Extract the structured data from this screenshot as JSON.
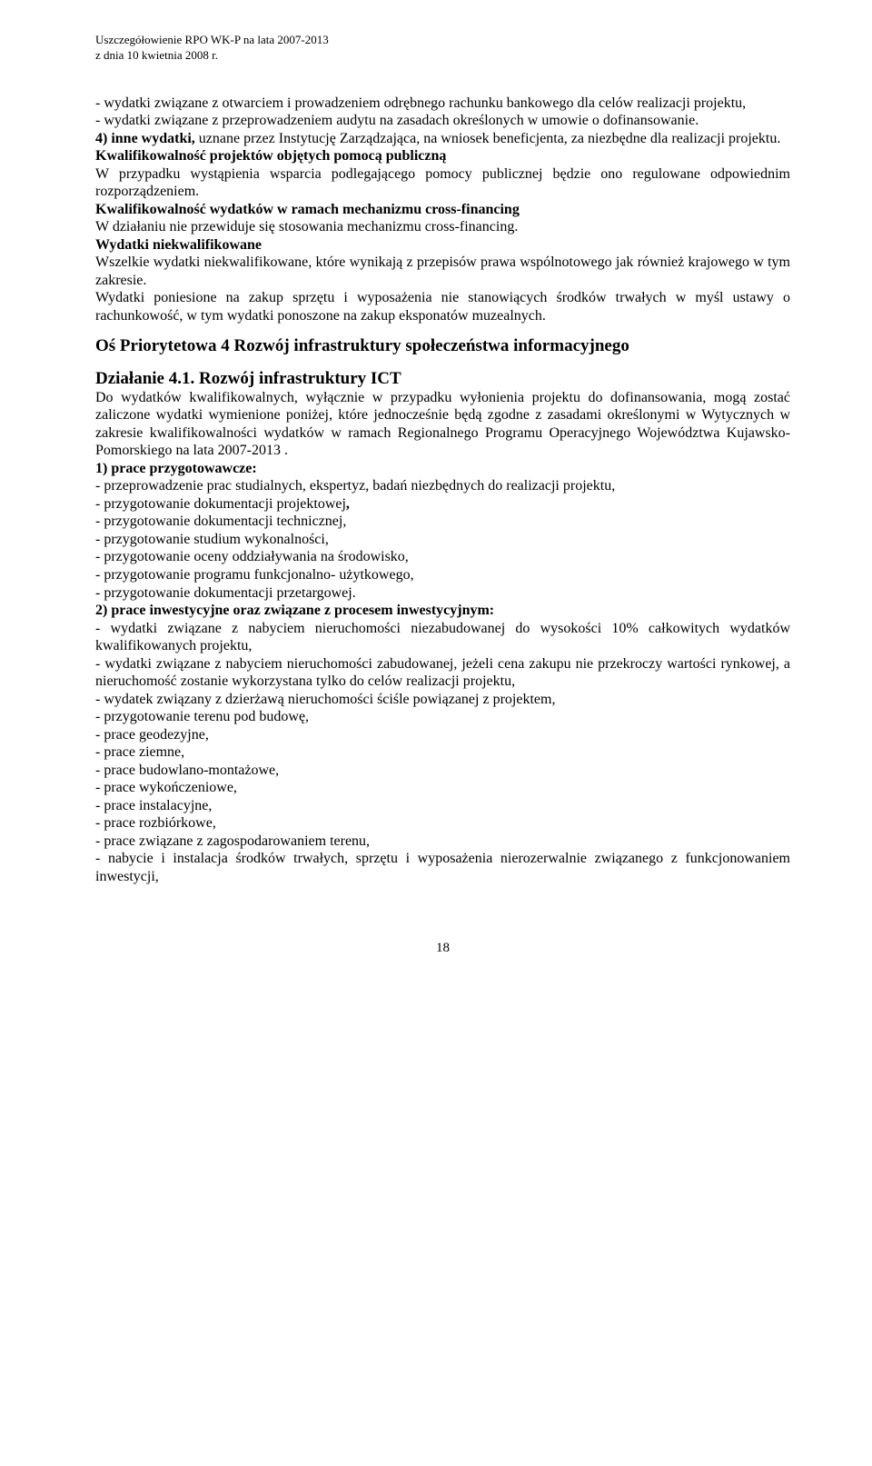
{
  "header": {
    "line1": "Uszczegółowienie RPO WK-P na lata 2007-2013",
    "line2": "z dnia 10 kwietnia 2008 r."
  },
  "body": {
    "p1": "- wydatki związane z otwarciem i prowadzeniem odrębnego rachunku bankowego dla celów realizacji projektu,",
    "p2": "- wydatki związane z przeprowadzeniem audytu na zasadach określonych w umowie o dofinansowanie.",
    "p3a": "4) inne wydatki,",
    "p3b": " uznane przez Instytucję Zarządzająca, na wniosek beneficjenta, za niezbędne dla realizacji projektu.",
    "p4h": "Kwalifikowalność projektów objętych pomocą publiczną",
    "p4": "W przypadku wystąpienia wsparcia podlegającego pomocy publicznej będzie ono regulowane odpowiednim rozporządzeniem.",
    "p5h": "Kwalifikowalność wydatków w ramach mechanizmu cross-financing",
    "p5": "W działaniu nie przewiduje się stosowania mechanizmu cross-financing.",
    "p6h": "Wydatki niekwalifikowane",
    "p6": "Wszelkie wydatki niekwalifikowane, które wynikają z przepisów prawa wspólnotowego jak również krajowego w tym zakresie.",
    "p7": "Wydatki poniesione na zakup sprzętu i wyposażenia nie stanowiących środków trwałych w myśl ustawy o rachunkowość, w tym wydatki ponoszone na zakup eksponatów muzealnych.",
    "sec1": "Oś Priorytetowa 4 Rozwój infrastruktury społeczeństwa informacyjnego",
    "sec2": "Działanie 4.1. Rozwój infrastruktury ICT",
    "p8": "Do wydatków kwalifikowalnych, wyłącznie w przypadku wyłonienia projektu do dofinansowania, mogą zostać zaliczone wydatki wymienione poniżej, które jednocześnie będą zgodne z zasadami określonymi w Wytycznych w zakresie kwalifikowalności wydatków w ramach Regionalnego Programu Operacyjnego Województwa Kujawsko-Pomorskiego na lata 2007-2013 .",
    "p9h": "1) prace przygotowawcze:",
    "p9_1": "- przeprowadzenie prac studialnych, ekspertyz, badań niezbędnych do realizacji projektu,",
    "p9_2a": "- przygotowanie dokumentacji projektowej",
    "p9_2b": ",",
    "p9_3": "- przygotowanie dokumentacji technicznej,",
    "p9_4": "- przygotowanie studium wykonalności,",
    "p9_5": "- przygotowanie oceny oddziaływania na środowisko,",
    "p9_6": "- przygotowanie programu funkcjonalno- użytkowego,",
    "p9_7": "- przygotowanie dokumentacji przetargowej.",
    "p10h": "2) prace inwestycyjne oraz związane z procesem inwestycyjnym:",
    "p10_1": "- wydatki związane z nabyciem nieruchomości niezabudowanej do wysokości 10% całkowitych wydatków kwalifikowanych projektu,",
    "p10_2": "- wydatki związane z nabyciem nieruchomości zabudowanej, jeżeli cena zakupu nie przekroczy wartości rynkowej, a nieruchomość  zostanie wykorzystana tylko do celów realizacji projektu,",
    "p10_3": "- wydatek związany z dzierżawą nieruchomości  ściśle powiązanej z projektem,",
    "p10_4": "- przygotowanie terenu pod budowę,",
    "p10_5": "- prace geodezyjne,",
    "p10_6": "- prace ziemne,",
    "p10_7": "- prace budowlano-montażowe,",
    "p10_8": "- prace wykończeniowe,",
    "p10_9": "- prace instalacyjne,",
    "p10_10": "- prace rozbiórkowe,",
    "p10_11": "- prace związane z zagospodarowaniem terenu,",
    "p10_12": "- nabycie i instalacja środków trwałych, sprzętu i wyposażenia nierozerwalnie związanego z funkcjonowaniem inwestycji,"
  },
  "footer": {
    "page": "18"
  }
}
